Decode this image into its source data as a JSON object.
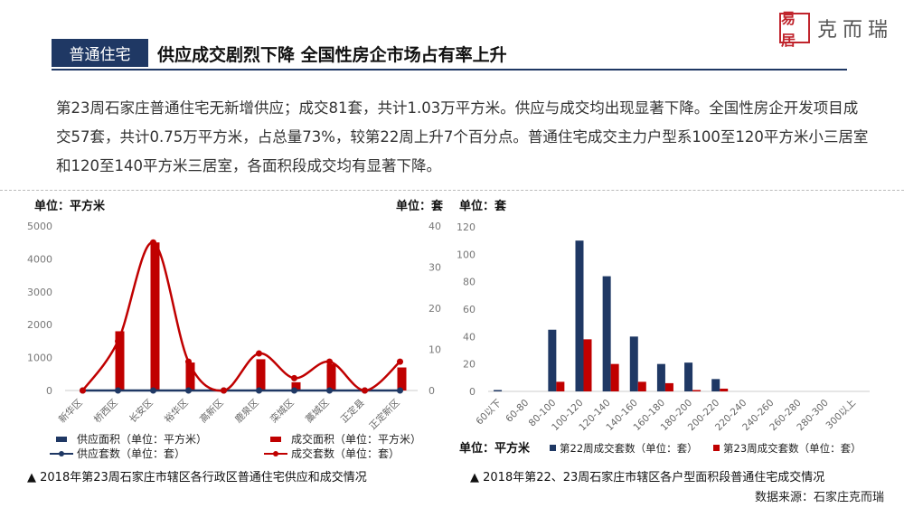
{
  "header": {
    "logo_seal": "易居",
    "brand": "克而瑞",
    "tag": "普通住宅",
    "headline": "供应成交剧烈下降 全国性房企市场占有率上升"
  },
  "summary": "第23周石家庄普通住宅无新增供应；成交81套，共计1.03万平方米。供应与成交均出现显著下降。全国性房企开发项目成交57套，共计0.75万平方米，占总量73%，较第22周上升7个百分点。普通住宅成交主力户型系100至120平方米小三居室和120至140平方米三居室，各面积段成交均有显著下降。",
  "chart_data": [
    {
      "type": "bar+line",
      "unit_left": "单位：平方米",
      "unit_right": "单位：套",
      "categories": [
        "新华区",
        "桥西区",
        "长安区",
        "裕华区",
        "高新区",
        "鹿泉区",
        "栾城区",
        "藁城区",
        "正定县",
        "正定新区"
      ],
      "left_axis": {
        "min": 0,
        "max": 5000,
        "ticks": [
          0,
          1000,
          2000,
          3000,
          4000,
          5000
        ]
      },
      "right_axis": {
        "min": 0,
        "max": 40,
        "ticks": [
          0,
          10,
          20,
          30,
          40
        ]
      },
      "series": [
        {
          "name": "供应面积（单位：平方米）",
          "kind": "bar",
          "axis": "left",
          "color": "#1f3864",
          "values": [
            0,
            0,
            0,
            0,
            0,
            0,
            0,
            0,
            0,
            0
          ]
        },
        {
          "name": "成交面积（单位：平方米）",
          "kind": "bar",
          "axis": "left",
          "color": "#c00000",
          "values": [
            0,
            1800,
            4500,
            850,
            0,
            950,
            250,
            800,
            0,
            700
          ]
        },
        {
          "name": "供应套数（单位：套）",
          "kind": "line",
          "axis": "right",
          "color": "#1f3864",
          "values": [
            0,
            0,
            0,
            0,
            0,
            0,
            0,
            0,
            0,
            0
          ]
        },
        {
          "name": "成交套数（单位：套）",
          "kind": "line",
          "axis": "right",
          "color": "#c00000",
          "values": [
            0,
            12,
            36,
            7,
            0,
            9,
            3,
            7,
            0,
            7
          ]
        }
      ],
      "caption": "▲ 2018年第23周石家庄市辖区各行政区普通住宅供应和成交情况"
    },
    {
      "type": "bar",
      "unit_top": "单位：套",
      "unit_bottom": "单位：平方米",
      "categories": [
        "60以下",
        "60-80",
        "80-100",
        "100-120",
        "120-140",
        "140-160",
        "160-180",
        "180-200",
        "200-220",
        "220-240",
        "240-260",
        "260-280",
        "280-300",
        "300以上"
      ],
      "axis": {
        "min": 0,
        "max": 120,
        "ticks": [
          0,
          20,
          40,
          60,
          80,
          100,
          120
        ]
      },
      "series": [
        {
          "name": "第22周成交套数（单位：套）",
          "color": "#1f3864",
          "values": [
            1,
            0,
            45,
            110,
            84,
            40,
            20,
            21,
            9,
            0,
            0,
            0,
            0,
            0
          ]
        },
        {
          "name": "第23周成交套数（单位：套）",
          "color": "#c00000",
          "values": [
            0,
            0,
            7,
            38,
            20,
            7,
            6,
            1,
            2,
            0,
            0,
            0,
            0,
            0
          ]
        }
      ],
      "caption": "▲ 2018年第22、23周石家庄市辖区各户型面积段普通住宅成交情况"
    }
  ],
  "footer": {
    "source": "数据来源：石家庄克而瑞"
  }
}
